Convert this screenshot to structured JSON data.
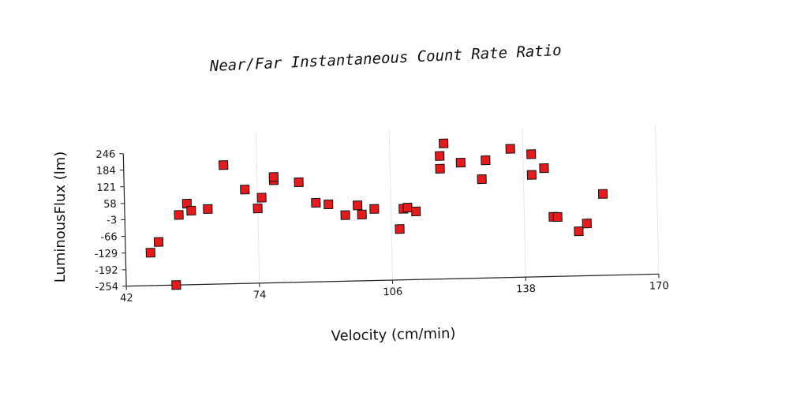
{
  "chart_data": {
    "type": "scatter",
    "title": "Near/Far Instantaneous Count Rate Ratio",
    "xlabel": "Velocity (cm/min)",
    "ylabel": "LuminousFlux (lm)",
    "xlim": [
      42,
      170
    ],
    "ylim": [
      -254,
      246
    ],
    "x_ticks": [
      42,
      74,
      106,
      138,
      170
    ],
    "y_ticks": [
      -254,
      -192,
      -129,
      -66,
      -3,
      58,
      121,
      184,
      246
    ],
    "grid": "vertical",
    "marker_color": "#e41a1c",
    "series": [
      {
        "points": [
          [
            48,
            -130
          ],
          [
            50,
            -90
          ],
          [
            54,
            -254
          ],
          [
            55,
            10
          ],
          [
            57,
            52
          ],
          [
            58,
            25
          ],
          [
            62,
            30
          ],
          [
            66,
            194
          ],
          [
            71,
            100
          ],
          [
            74,
            28
          ],
          [
            75,
            68
          ],
          [
            78,
            133
          ],
          [
            78,
            145
          ],
          [
            84,
            123
          ],
          [
            88,
            44
          ],
          [
            91,
            37
          ],
          [
            95,
            -5
          ],
          [
            98,
            31
          ],
          [
            99,
            -4
          ],
          [
            102,
            16
          ],
          [
            108,
            -62
          ],
          [
            109,
            14
          ],
          [
            110,
            18
          ],
          [
            112,
            3
          ],
          [
            118,
            162
          ],
          [
            118,
            210
          ],
          [
            119,
            257
          ],
          [
            123,
            183
          ],
          [
            128,
            119
          ],
          [
            129,
            190
          ],
          [
            135,
            231
          ],
          [
            140,
            131
          ],
          [
            140,
            209
          ],
          [
            143,
            155
          ],
          [
            145,
            -29
          ],
          [
            146,
            -30
          ],
          [
            151,
            -86
          ],
          [
            153,
            -57
          ],
          [
            157,
            53
          ]
        ]
      }
    ]
  }
}
